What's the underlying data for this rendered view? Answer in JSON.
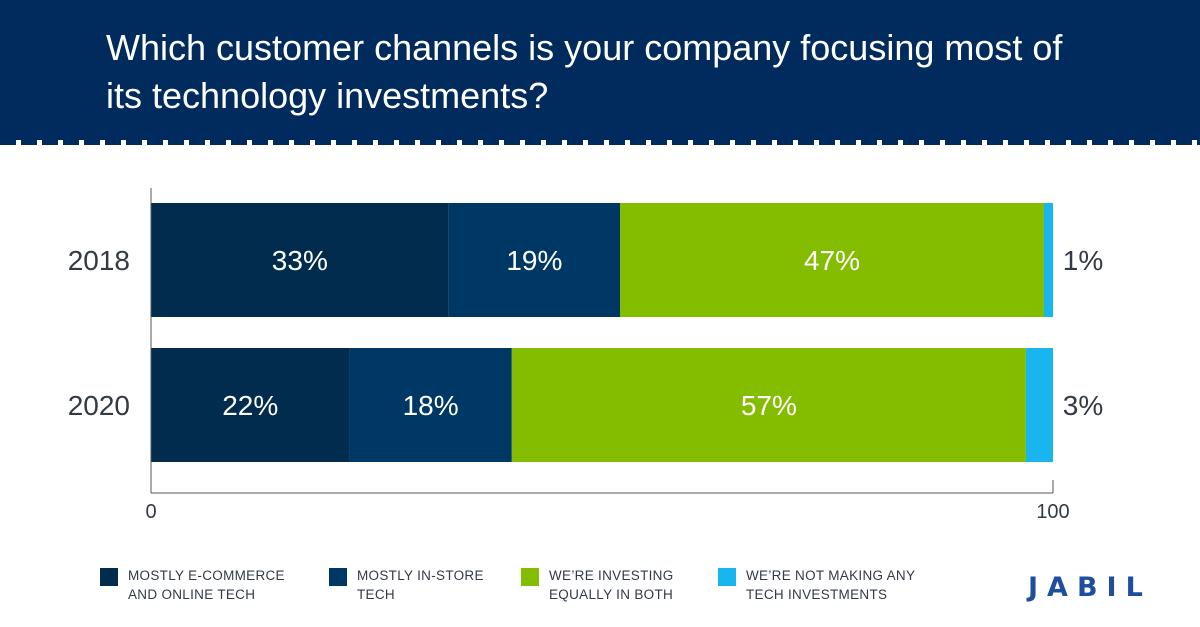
{
  "header": {
    "title": "Which customer channels is your company focusing most of its technology investments?"
  },
  "colors": {
    "header_bg": "#002b5c",
    "series": [
      "#012c4e",
      "#003865",
      "#84bd00",
      "#18b5ee"
    ]
  },
  "chart_data": {
    "type": "bar",
    "orientation": "horizontal",
    "stacked": true,
    "title": "Which customer channels is your company focusing most of its technology investments?",
    "categories": [
      "2018",
      "2020"
    ],
    "series": [
      {
        "name": "MOSTLY E-COMMERCE AND ONLINE TECH",
        "values": [
          33,
          22
        ],
        "labels": [
          "33%",
          "22%"
        ]
      },
      {
        "name": "MOSTLY IN-STORE TECH",
        "values": [
          19,
          18
        ],
        "labels": [
          "19%",
          "18%"
        ]
      },
      {
        "name": "WE’RE INVESTING EQUALLY IN BOTH",
        "values": [
          47,
          57
        ],
        "labels": [
          "47%",
          "57%"
        ]
      },
      {
        "name": "WE’RE NOT MAKING ANY TECH INVESTMENTS",
        "values": [
          1,
          3
        ],
        "labels": [
          "1%",
          "3%"
        ]
      }
    ],
    "xlim": [
      0,
      100
    ],
    "xticks": [
      "0",
      "100"
    ],
    "legend": "bottom",
    "grid": false
  },
  "legend": [
    {
      "label": "MOSTLY E-COMMERCE\nAND ONLINE TECH",
      "color": "#012c4e"
    },
    {
      "label": "MOSTLY IN-STORE\nTECH",
      "color": "#003865"
    },
    {
      "label": "WE’RE INVESTING\nEQUALLY IN BOTH",
      "color": "#84bd00"
    },
    {
      "label": "WE’RE NOT MAKING ANY\nTECH INVESTMENTS",
      "color": "#18b5ee"
    }
  ],
  "logo": {
    "text": "JABIL",
    "icon": "jabil-swoosh-icon"
  }
}
